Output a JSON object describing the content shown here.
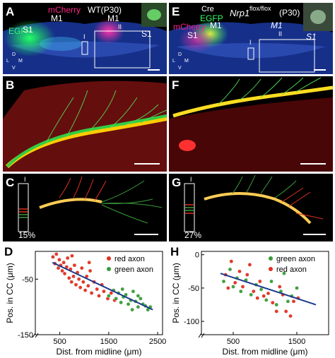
{
  "panels": {
    "A": {
      "label": "A",
      "title": "WT(P30)",
      "mcherry": "mCherry",
      "egfp": "EGFP",
      "regions": [
        "S1",
        "M1",
        "M1",
        "S1"
      ],
      "roman": [
        "I",
        "II"
      ],
      "axes": [
        "D",
        "L",
        "M",
        "V"
      ]
    },
    "E": {
      "label": "E",
      "title_gene": "Nrp1",
      "title_sup": "flox/flox",
      "title_age": "(P30)",
      "cre": "Cre",
      "egfp": "EGFP",
      "mcherry": "mCherry",
      "regions": [
        "S1",
        "M1",
        "M1",
        "S1"
      ],
      "roman": [
        "I",
        "II"
      ],
      "axes": [
        "D",
        "L",
        "M",
        "V"
      ]
    },
    "B": {
      "label": "B"
    },
    "F": {
      "label": "F"
    },
    "C": {
      "label": "C",
      "roman": "I",
      "percent": "15%"
    },
    "G": {
      "label": "G",
      "roman": "I",
      "percent": "27%"
    }
  },
  "colors": {
    "red": "#e03020",
    "green": "#3a9a3a",
    "blue": "#1c3a8c",
    "egfp": "#33ff66",
    "mcherry": "#ff2288"
  },
  "chart_data": [
    {
      "panel": "D",
      "type": "scatter",
      "ylabel": "Pos. in CC (μm)",
      "xlabel": "Dist. from midline (μm)",
      "xticks": [
        500,
        1500,
        2500
      ],
      "yticks": [
        -50,
        -150
      ],
      "xlim": [
        0,
        2600
      ],
      "ylim": [
        -150,
        0
      ],
      "legend_position": "top-right",
      "series": [
        {
          "name": "red axon",
          "color": "#e03020",
          "points": [
            [
              360,
              -10
            ],
            [
              400,
              -22
            ],
            [
              430,
              -5
            ],
            [
              470,
              -30
            ],
            [
              490,
              -15
            ],
            [
              520,
              -25
            ],
            [
              550,
              -35
            ],
            [
              580,
              -20
            ],
            [
              600,
              -40
            ],
            [
              640,
              -28
            ],
            [
              660,
              -12
            ],
            [
              690,
              -48
            ],
            [
              720,
              -32
            ],
            [
              740,
              -55
            ],
            [
              780,
              -45
            ],
            [
              800,
              -25
            ],
            [
              830,
              -60
            ],
            [
              860,
              -38
            ],
            [
              890,
              -50
            ],
            [
              920,
              -65
            ],
            [
              950,
              -30
            ],
            [
              980,
              -55
            ],
            [
              1020,
              -70
            ],
            [
              1050,
              -45
            ],
            [
              1080,
              -62
            ],
            [
              1120,
              -35
            ],
            [
              1150,
              -75
            ],
            [
              1200,
              -55
            ],
            [
              1260,
              -68
            ],
            [
              1300,
              -80
            ],
            [
              1360,
              -60
            ],
            [
              1400,
              -72
            ],
            [
              1480,
              -85
            ],
            [
              1550,
              -75
            ],
            [
              1620,
              -88
            ],
            [
              1100,
              -20
            ],
            [
              750,
              -8
            ]
          ]
        },
        {
          "name": "green axon",
          "color": "#3a9a3a",
          "points": [
            [
              1500,
              -80
            ],
            [
              1600,
              -70
            ],
            [
              1650,
              -85
            ],
            [
              1700,
              -75
            ],
            [
              1750,
              -92
            ],
            [
              1800,
              -82
            ],
            [
              1850,
              -78
            ],
            [
              1900,
              -95
            ],
            [
              1950,
              -88
            ],
            [
              2000,
              -72
            ],
            [
              2050,
              -90
            ],
            [
              2100,
              -100
            ],
            [
              2150,
              -85
            ],
            [
              2200,
              -95
            ],
            [
              2250,
              -98
            ],
            [
              2300,
              -105
            ],
            [
              1980,
              -105
            ],
            [
              2100,
              -80
            ],
            [
              1780,
              -68
            ],
            [
              2350,
              -100
            ]
          ]
        }
      ],
      "trendline": [
        [
          350,
          -20
        ],
        [
          2400,
          -105
        ]
      ]
    },
    {
      "panel": "H",
      "type": "scatter",
      "ylabel": "Pos. in CC (μm)",
      "xlabel": "Dist. from midline (μm)",
      "xticks": [
        500,
        1500
      ],
      "yticks": [
        0,
        -50,
        -100
      ],
      "xlim": [
        0,
        2000
      ],
      "ylim": [
        -120,
        5
      ],
      "legend_position": "top-right",
      "series": [
        {
          "name": "green axon",
          "color": "#3a9a3a",
          "points": [
            [
              350,
              -40
            ],
            [
              450,
              -22
            ],
            [
              500,
              -48
            ],
            [
              560,
              -35
            ],
            [
              620,
              -55
            ],
            [
              700,
              -38
            ],
            [
              780,
              -60
            ],
            [
              860,
              -45
            ],
            [
              940,
              -52
            ],
            [
              1020,
              -68
            ],
            [
              1100,
              -40
            ],
            [
              1180,
              -75
            ],
            [
              1250,
              -55
            ],
            [
              1300,
              -28
            ],
            [
              1360,
              -70
            ],
            [
              1420,
              -62
            ],
            [
              1500,
              -50
            ]
          ]
        },
        {
          "name": "red axon",
          "color": "#e03020",
          "points": [
            [
              380,
              -30
            ],
            [
              420,
              -50
            ],
            [
              470,
              -10
            ],
            [
              530,
              -42
            ],
            [
              600,
              -25
            ],
            [
              650,
              -48
            ],
            [
              720,
              -30
            ],
            [
              760,
              -15
            ],
            [
              820,
              -55
            ],
            [
              880,
              -65
            ],
            [
              920,
              -40
            ],
            [
              980,
              -62
            ],
            [
              1050,
              -58
            ],
            [
              1120,
              -72
            ],
            [
              1180,
              -85
            ],
            [
              1230,
              -48
            ],
            [
              1280,
              -60
            ],
            [
              1330,
              -85
            ],
            [
              1400,
              -92
            ],
            [
              1450,
              -70
            ],
            [
              1520,
              -65
            ]
          ]
        }
      ],
      "trendline": [
        [
          300,
          -28
        ],
        [
          1800,
          -75
        ]
      ]
    }
  ]
}
